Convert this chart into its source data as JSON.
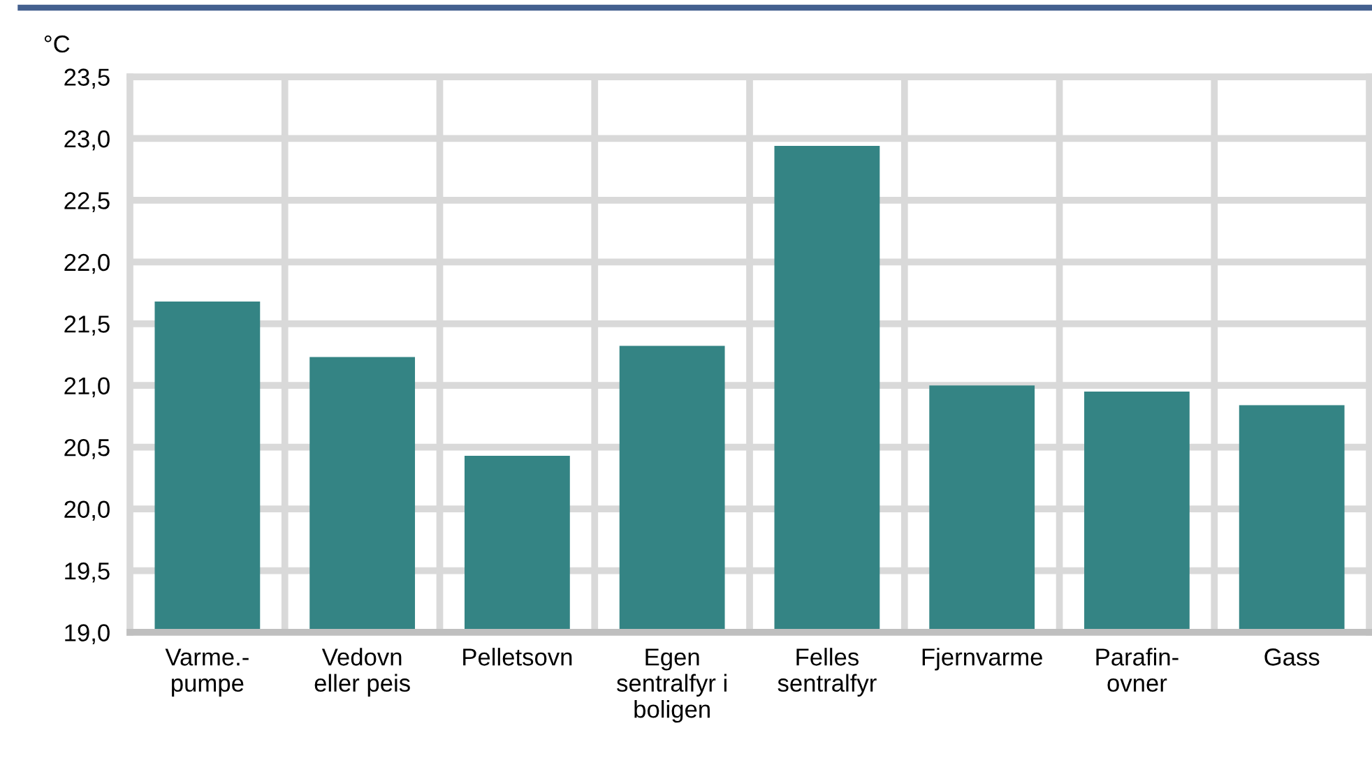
{
  "chart_data": {
    "type": "bar",
    "ylabel": "°C",
    "categories": [
      "Varme.-\npumpe",
      "Vedovn\neller peis",
      "Pelletsovn",
      "Egen\nsentralfyr i\nboligen",
      "Felles\nsentralfyr",
      "Fjernvarme",
      "Parafin-\novner",
      "Gass"
    ],
    "values": [
      21.68,
      21.23,
      20.43,
      21.32,
      22.94,
      21.0,
      20.95,
      20.84
    ],
    "color": "#348484",
    "ylim": [
      19.0,
      23.5
    ],
    "yticks": [
      {
        "value": 19.0,
        "label": "19,0"
      },
      {
        "value": 19.5,
        "label": "19,5"
      },
      {
        "value": 20.0,
        "label": "20,0"
      },
      {
        "value": 20.5,
        "label": "20,5"
      },
      {
        "value": 21.0,
        "label": "21,0"
      },
      {
        "value": 21.5,
        "label": "21,5"
      },
      {
        "value": 22.0,
        "label": "22,0"
      },
      {
        "value": 22.5,
        "label": "22,5"
      },
      {
        "value": 23.0,
        "label": "23,0"
      },
      {
        "value": 23.5,
        "label": "23,5"
      }
    ],
    "grid": true
  }
}
